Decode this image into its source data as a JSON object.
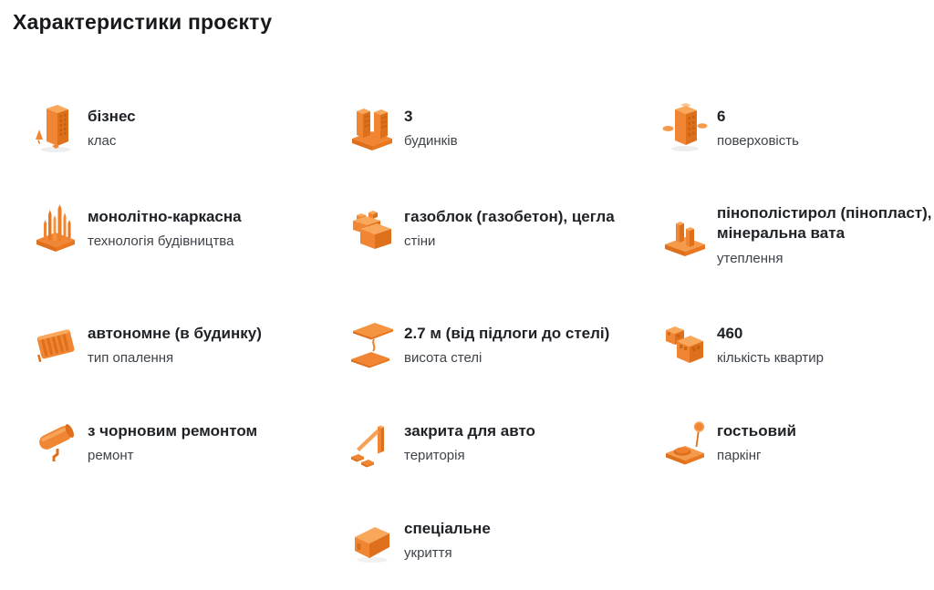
{
  "page": {
    "title": "Характеристики проєкту",
    "accent_color": "#F08534",
    "accent_dark": "#DE6F1B",
    "accent_light": "#F9A75B"
  },
  "items": [
    {
      "row": 1,
      "col": 1,
      "icon": "business-class-building-icon",
      "value": "бізнес",
      "label": "клас"
    },
    {
      "row": 1,
      "col": 2,
      "icon": "buildings-count-icon",
      "value": "3",
      "label": "будинків"
    },
    {
      "row": 1,
      "col": 3,
      "icon": "floors-count-icon",
      "value": "6",
      "label": "поверховість"
    },
    {
      "row": 2,
      "col": 1,
      "icon": "frame-technology-icon",
      "value": "монолітно-каркасна",
      "label": "технологія будівництва"
    },
    {
      "row": 2,
      "col": 2,
      "icon": "wall-blocks-icon",
      "value": "газоблок (газобетон), цегла",
      "label": "стіни"
    },
    {
      "row": 2,
      "col": 3,
      "icon": "insulation-panel-icon",
      "value": "пінополістирол (пінопласт), мінеральна вата",
      "label": "утеплення"
    },
    {
      "row": 3,
      "col": 1,
      "icon": "radiator-icon",
      "value": "автономне (в будинку)",
      "label": "тип опалення"
    },
    {
      "row": 3,
      "col": 2,
      "icon": "ceiling-height-icon",
      "value": "2.7 м (від підлоги до стелі)",
      "label": "висота стелі"
    },
    {
      "row": 3,
      "col": 3,
      "icon": "apartments-count-icon",
      "value": "460",
      "label": "кількість квартир"
    },
    {
      "row": 4,
      "col": 1,
      "icon": "paint-roller-icon",
      "value": "з чорновим ремонтом",
      "label": "ремонт"
    },
    {
      "row": 4,
      "col": 2,
      "icon": "barrier-gate-icon",
      "value": "закрита для авто",
      "label": "територія"
    },
    {
      "row": 4,
      "col": 3,
      "icon": "guest-parking-icon",
      "value": "гостьовий",
      "label": "паркінг"
    },
    {
      "row": 5,
      "col": 2,
      "icon": "shelter-icon",
      "value": "спеціальне",
      "label": "укриття"
    }
  ]
}
